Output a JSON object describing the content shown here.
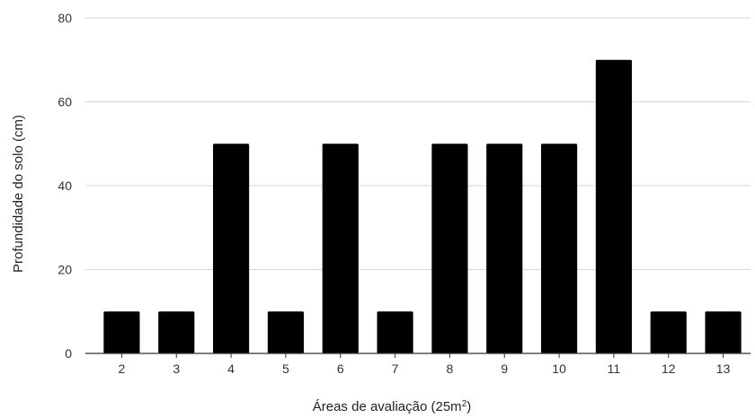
{
  "chart_data": {
    "type": "bar",
    "categories": [
      "2",
      "3",
      "4",
      "5",
      "6",
      "7",
      "8",
      "9",
      "10",
      "11",
      "12",
      "13"
    ],
    "values": [
      10,
      10,
      50,
      10,
      50,
      10,
      50,
      50,
      50,
      70,
      10,
      10
    ],
    "xlabel": "Áreas de avaliação (25m",
    "xlabel_sup": "2",
    "xlabel_suffix": ")",
    "ylabel": "Profundidade do solo (cm)",
    "ylim": [
      0,
      80
    ],
    "yticks": [
      0,
      20,
      40,
      60,
      80
    ],
    "grid": true,
    "bar_color": "#000000"
  }
}
